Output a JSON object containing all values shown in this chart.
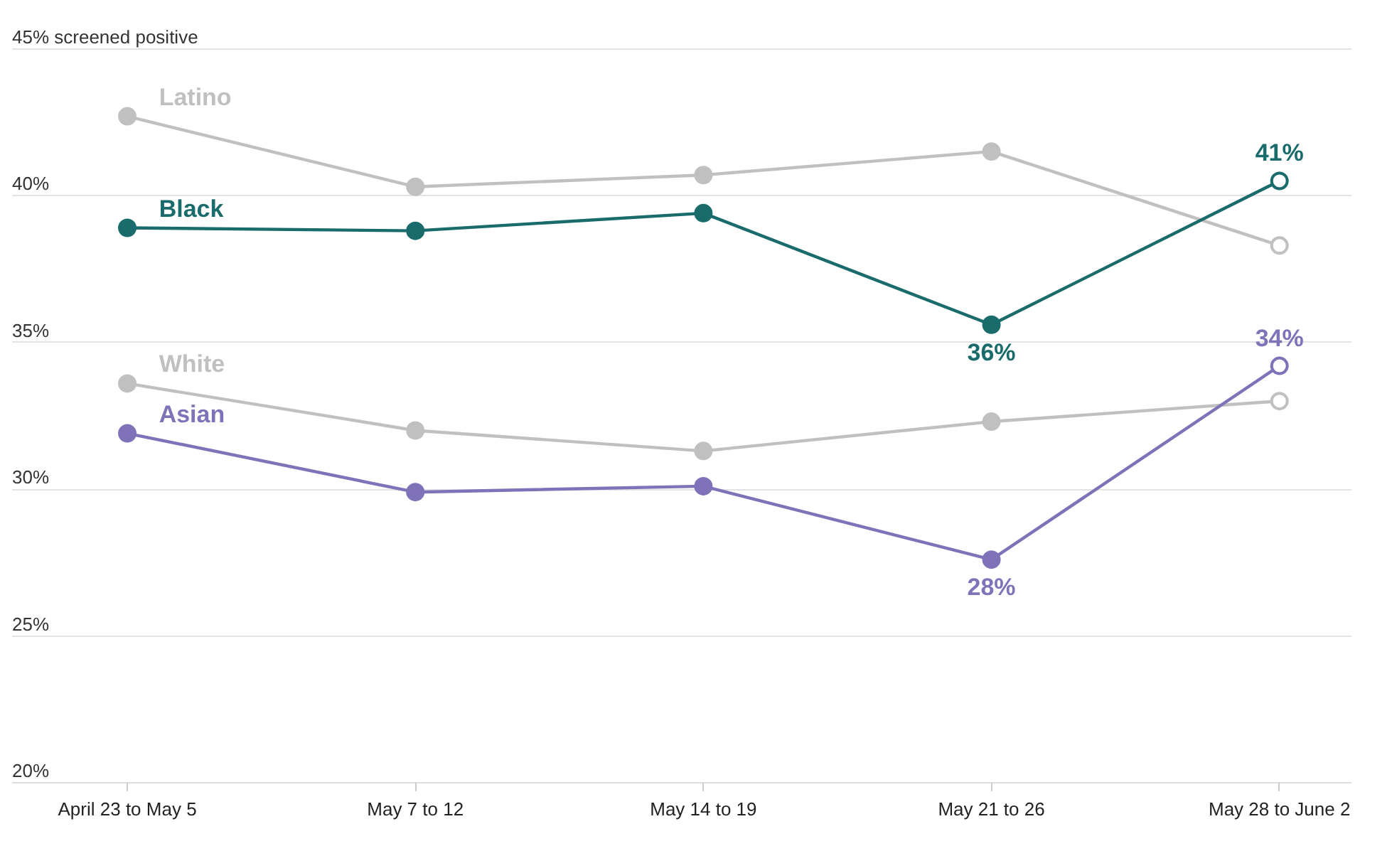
{
  "chart_data": {
    "type": "line",
    "categories": [
      "April 23 to May 5",
      "May 7 to 12",
      "May 14 to 19",
      "May 21 to 26",
      "May 28 to June 2"
    ],
    "series": [
      {
        "name": "Latino",
        "color": "#c0c0c0",
        "values": [
          42.7,
          40.3,
          40.7,
          41.5,
          38.3
        ]
      },
      {
        "name": "Black",
        "color": "#1a6b6b",
        "values": [
          38.9,
          38.8,
          39.4,
          35.6,
          40.5
        ],
        "value_labels": [
          null,
          null,
          null,
          "36%",
          "41%"
        ]
      },
      {
        "name": "White",
        "color": "#c0c0c0",
        "values": [
          33.6,
          32.0,
          31.3,
          32.3,
          33.0
        ]
      },
      {
        "name": "Asian",
        "color": "#7f72b8",
        "values": [
          31.9,
          29.9,
          30.1,
          27.6,
          34.2
        ],
        "value_labels": [
          null,
          null,
          null,
          "28%",
          "34%"
        ]
      }
    ],
    "ylim": [
      20,
      45
    ],
    "yticks": [
      {
        "value": 20,
        "label": "20%"
      },
      {
        "value": 25,
        "label": "25%"
      },
      {
        "value": 30,
        "label": "30%"
      },
      {
        "value": 35,
        "label": "35%"
      },
      {
        "value": 40,
        "label": "40%"
      },
      {
        "value": 45,
        "label": "45% screened positive"
      }
    ],
    "grid": "y",
    "marker": "circle",
    "line_style": "solid"
  }
}
